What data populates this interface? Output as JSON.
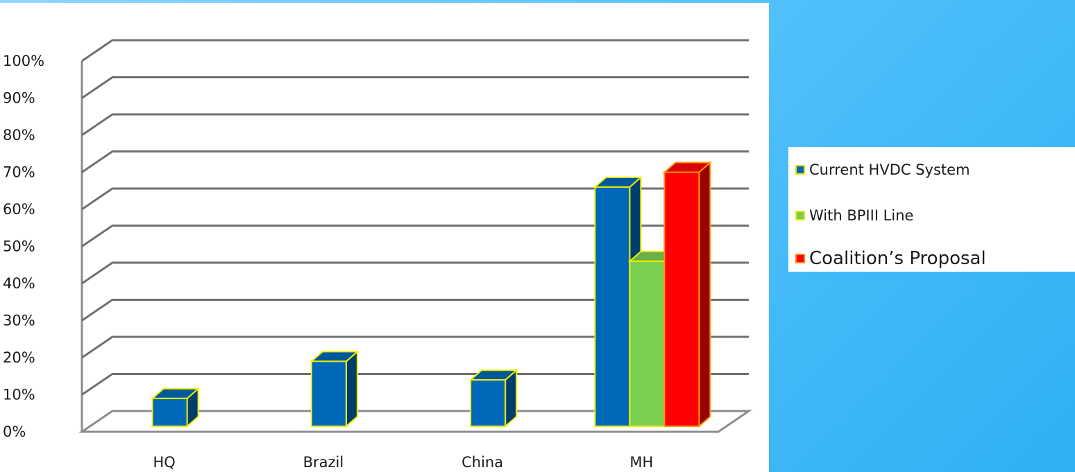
{
  "chart_data": {
    "type": "bar",
    "categories": [
      "HQ",
      "Brazil",
      "China",
      "MH"
    ],
    "series": [
      {
        "name": "Current HVDC System",
        "color": "#0068b8",
        "values": [
          9,
          19,
          14,
          66
        ]
      },
      {
        "name": "With BPIII  Line",
        "color": "#7ccf52",
        "values": [
          null,
          null,
          null,
          46
        ]
      },
      {
        "name": "Coalition’s Proposal",
        "color": "#ff0000",
        "values": [
          null,
          null,
          null,
          70
        ]
      }
    ],
    "y_ticks": [
      "0%",
      "10%",
      "20%",
      "30%",
      "40%",
      "50%",
      "60%",
      "70%",
      "80%",
      "90%",
      "100%"
    ],
    "ylim": [
      0,
      100
    ],
    "grid": true,
    "legend_position": "right",
    "style": "3d-bar",
    "bar_outline_color": "#f0f000"
  }
}
